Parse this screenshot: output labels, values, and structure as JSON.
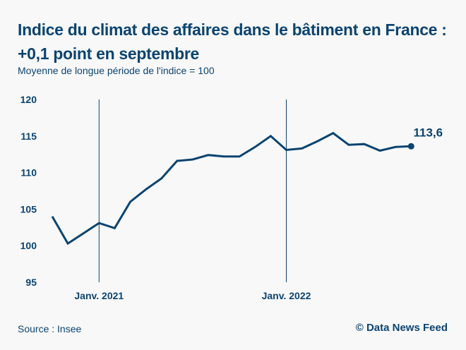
{
  "header": {
    "title": "Indice du climat des affaires dans le bâtiment en France : +0,1 point en septembre",
    "subtitle": "Moyenne de longue période de l'indice = 100"
  },
  "footer": {
    "source": "Source : Insee",
    "credit": "© Data News Feed"
  },
  "colors": {
    "series": "#0b4470",
    "background": "#f8f8f8"
  },
  "chart_data": {
    "type": "line",
    "title": "Indice du climat des affaires dans le bâtiment en France : +0,1 point en septembre",
    "subtitle": "Moyenne de longue période de l'indice = 100",
    "xlabel": "",
    "ylabel": "",
    "ylim": [
      95,
      120
    ],
    "yticks": [
      95,
      100,
      105,
      110,
      115,
      120
    ],
    "ytick_labels": [
      "95",
      "100",
      "105",
      "110",
      "115",
      "120"
    ],
    "grid": false,
    "x": [
      "2020-10",
      "2020-11",
      "2020-12",
      "2021-01",
      "2021-02",
      "2021-03",
      "2021-04",
      "2021-05",
      "2021-06",
      "2021-07",
      "2021-08",
      "2021-09",
      "2021-10",
      "2021-11",
      "2021-12",
      "2022-01",
      "2022-02",
      "2022-03",
      "2022-04",
      "2022-05",
      "2022-06",
      "2022-07",
      "2022-08",
      "2022-09"
    ],
    "xticks": [
      {
        "index": 3,
        "label": "Janv. 2021"
      },
      {
        "index": 15,
        "label": "Janv. 2022"
      }
    ],
    "series": [
      {
        "name": "Indice du climat des affaires dans le bâtiment",
        "values": [
          104.0,
          100.3,
          101.7,
          103.1,
          102.4,
          106.0,
          107.7,
          109.2,
          111.6,
          111.8,
          112.4,
          112.2,
          112.2,
          113.5,
          115.0,
          113.1,
          113.3,
          114.3,
          115.4,
          113.8,
          113.9,
          113.0,
          113.5,
          113.6
        ]
      }
    ],
    "annotations": [
      {
        "index": 23,
        "text": "113,6",
        "marker": "dot"
      }
    ]
  }
}
